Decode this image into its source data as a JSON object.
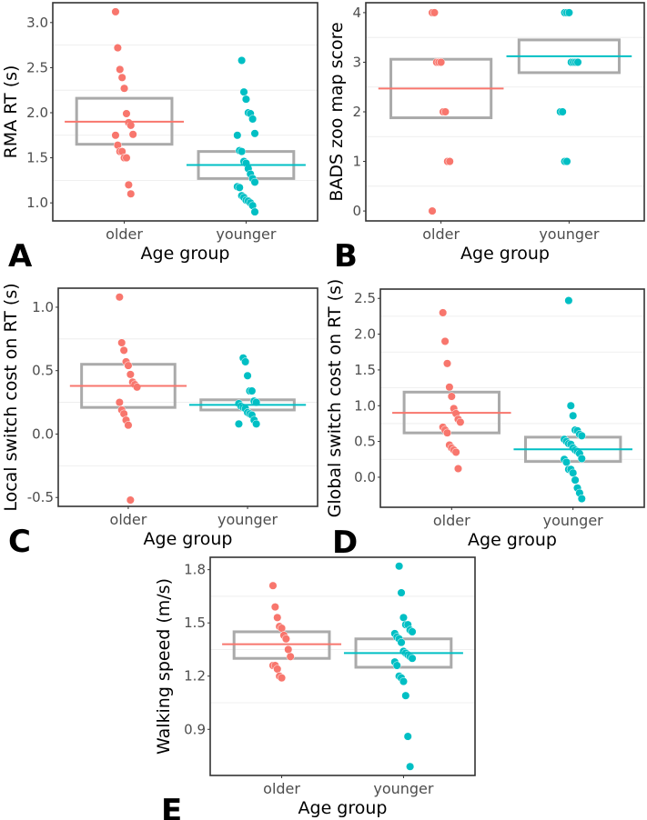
{
  "colors": {
    "older": "#F8766D",
    "younger": "#00BFC4",
    "box": "#AAAAAA",
    "grid": "#EBEBEB"
  },
  "chart_data": [
    {
      "panel": "A",
      "type": "scatter",
      "ylabel": "RMA RT (s)",
      "xlabel": "Age group",
      "categories": [
        "older",
        "younger"
      ],
      "ylim": [
        0.8,
        3.22
      ],
      "yticks": [
        1.0,
        1.5,
        2.0,
        2.5,
        3.0
      ],
      "ytick_labels": [
        "1.0",
        "1.5",
        "2.0",
        "2.5",
        "3.0"
      ],
      "series": [
        {
          "name": "older",
          "mean": 1.9,
          "box": [
            1.65,
            2.16
          ],
          "values": [
            3.12,
            2.72,
            2.48,
            2.39,
            2.27,
            1.99,
            1.89,
            1.86,
            1.76,
            1.75,
            1.64,
            1.57,
            1.57,
            1.5,
            1.5,
            1.2,
            1.1
          ]
        },
        {
          "name": "younger",
          "mean": 1.42,
          "box": [
            1.27,
            1.57
          ],
          "values": [
            2.58,
            2.23,
            2.15,
            2.0,
            1.99,
            1.93,
            1.77,
            1.75,
            1.58,
            1.57,
            1.46,
            1.44,
            1.38,
            1.32,
            1.27,
            1.23,
            1.18,
            1.17,
            1.08,
            1.06,
            1.03,
            1.02,
            1.0,
            0.97,
            0.9
          ]
        }
      ]
    },
    {
      "panel": "B",
      "type": "scatter",
      "ylabel": "BADS zoo map score",
      "xlabel": "Age group",
      "categories": [
        "older",
        "younger"
      ],
      "ylim": [
        -0.2,
        4.2
      ],
      "yticks": [
        0,
        1,
        2,
        3,
        4
      ],
      "ytick_labels": [
        "0",
        "1",
        "2",
        "3",
        "4"
      ],
      "series": [
        {
          "name": "older",
          "mean": 2.47,
          "box": [
            1.88,
            3.06
          ],
          "values": [
            4,
            4,
            3,
            3,
            3,
            2,
            2,
            1,
            1,
            0
          ]
        },
        {
          "name": "younger",
          "mean": 3.12,
          "box": [
            2.79,
            3.45
          ],
          "values": [
            4,
            4,
            4,
            3,
            3,
            3,
            3,
            2,
            2,
            1,
            1
          ]
        }
      ]
    },
    {
      "panel": "C",
      "type": "scatter",
      "ylabel": "Local switch cost on RT (s)",
      "xlabel": "Age group",
      "categories": [
        "older",
        "younger"
      ],
      "ylim": [
        -0.57,
        1.15
      ],
      "yticks": [
        -0.5,
        0.0,
        0.5,
        1.0
      ],
      "ytick_labels": [
        "-0.5",
        "0.0",
        "0.5",
        "1.0"
      ],
      "series": [
        {
          "name": "older",
          "mean": 0.38,
          "box": [
            0.21,
            0.55
          ],
          "values": [
            1.08,
            0.72,
            0.66,
            0.57,
            0.54,
            0.47,
            0.41,
            0.39,
            0.37,
            0.25,
            0.19,
            0.16,
            0.11,
            0.07,
            -0.52
          ]
        },
        {
          "name": "younger",
          "mean": 0.23,
          "box": [
            0.19,
            0.27
          ],
          "values": [
            0.6,
            0.57,
            0.46,
            0.34,
            0.34,
            0.26,
            0.25,
            0.24,
            0.22,
            0.21,
            0.2,
            0.17,
            0.16,
            0.15,
            0.11,
            0.08,
            0.08
          ]
        }
      ]
    },
    {
      "panel": "D",
      "type": "scatter",
      "ylabel": "Global switch cost on RT (s)",
      "xlabel": "Age group",
      "categories": [
        "older",
        "younger"
      ],
      "ylim": [
        -0.42,
        2.63
      ],
      "yticks": [
        0.0,
        0.5,
        1.0,
        1.5,
        2.0,
        2.5
      ],
      "ytick_labels": [
        "0.0",
        "0.5",
        "1.0",
        "1.5",
        "2.0",
        "2.5"
      ],
      "series": [
        {
          "name": "older",
          "mean": 0.9,
          "box": [
            0.62,
            1.19
          ],
          "values": [
            2.3,
            1.9,
            1.59,
            1.26,
            1.13,
            0.96,
            0.89,
            0.81,
            0.77,
            0.7,
            0.66,
            0.62,
            0.45,
            0.41,
            0.38,
            0.35,
            0.12
          ]
        },
        {
          "name": "younger",
          "mean": 0.39,
          "box": [
            0.22,
            0.56
          ],
          "values": [
            2.47,
            1.0,
            0.86,
            0.66,
            0.65,
            0.6,
            0.58,
            0.53,
            0.5,
            0.47,
            0.46,
            0.41,
            0.38,
            0.36,
            0.33,
            0.26,
            0.25,
            0.21,
            0.11,
            0.11,
            0.06,
            -0.04,
            -0.15,
            -0.22,
            -0.3
          ]
        }
      ]
    },
    {
      "panel": "E",
      "type": "scatter",
      "ylabel": "Walking speed (m/s)",
      "xlabel": "Age group",
      "categories": [
        "older",
        "younger"
      ],
      "ylim": [
        0.64,
        1.87
      ],
      "yticks": [
        0.9,
        1.2,
        1.5,
        1.8
      ],
      "ytick_labels": [
        "0.9",
        "1.2",
        "1.5",
        "1.8"
      ],
      "series": [
        {
          "name": "older",
          "mean": 1.38,
          "box": [
            1.3,
            1.45
          ],
          "values": [
            1.71,
            1.59,
            1.53,
            1.48,
            1.47,
            1.43,
            1.41,
            1.35,
            1.31,
            1.26,
            1.26,
            1.24,
            1.2,
            1.19
          ]
        },
        {
          "name": "younger",
          "mean": 1.33,
          "box": [
            1.25,
            1.41
          ],
          "values": [
            1.82,
            1.67,
            1.53,
            1.49,
            1.49,
            1.46,
            1.45,
            1.44,
            1.42,
            1.41,
            1.39,
            1.34,
            1.33,
            1.32,
            1.31,
            1.3,
            1.28,
            1.26,
            1.2,
            1.19,
            1.17,
            1.09,
            0.86,
            0.69
          ]
        }
      ]
    }
  ]
}
